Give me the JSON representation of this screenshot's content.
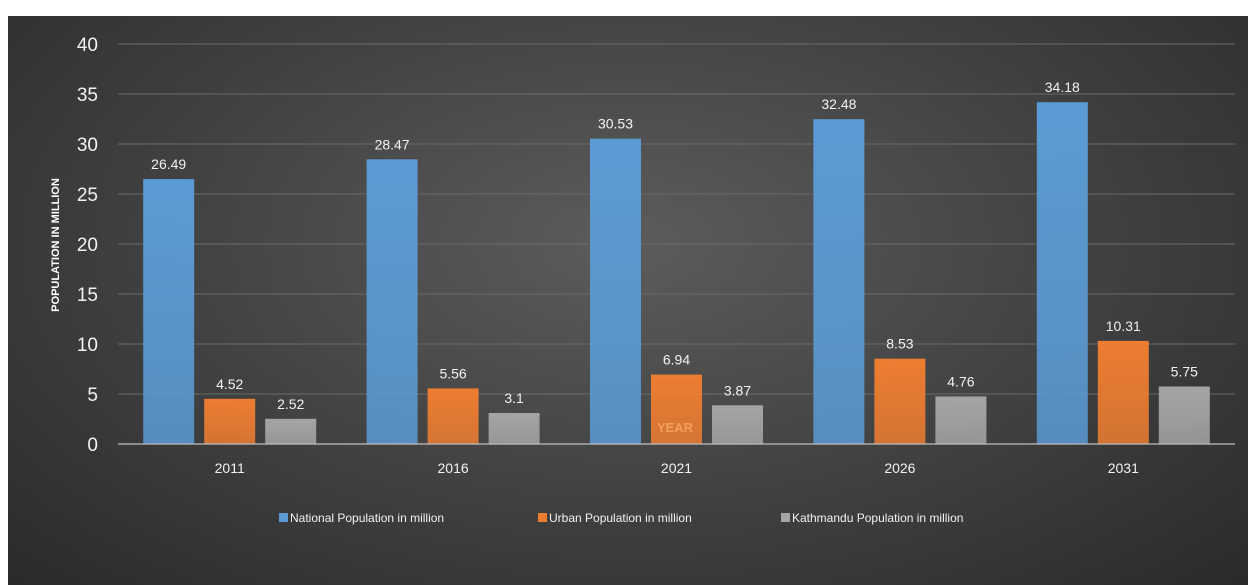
{
  "chart_data": {
    "type": "bar",
    "categories": [
      "2011",
      "2016",
      "2021",
      "2026",
      "2031"
    ],
    "series": [
      {
        "name": "National Population in million",
        "values": [
          26.49,
          28.47,
          30.53,
          32.48,
          34.18
        ],
        "color": "#5b9bd5"
      },
      {
        "name": "Urban Population in million",
        "values": [
          4.52,
          5.56,
          6.94,
          8.53,
          10.31
        ],
        "color": "#ed7d31"
      },
      {
        "name": "Kathmandu Population in million",
        "values": [
          2.52,
          3.1,
          3.87,
          4.76,
          5.75
        ],
        "color": "#a5a5a5"
      }
    ],
    "data_labels": [
      [
        "26.49",
        "28.47",
        "30.53",
        "32.48",
        "34.18"
      ],
      [
        "4.52",
        "5.56",
        "6.94",
        "8.53",
        "10.31"
      ],
      [
        "2.52",
        "3.1",
        "3.87",
        "4.76",
        "5.75"
      ]
    ],
    "yticks": [
      "0",
      "5",
      "10",
      "15",
      "20",
      "25",
      "30",
      "35",
      "40"
    ],
    "ylim": [
      0,
      40
    ],
    "xlabel": "YEAR",
    "ylabel": "POPULATION IN MILLION",
    "grid": true,
    "legend_position": "bottom"
  }
}
